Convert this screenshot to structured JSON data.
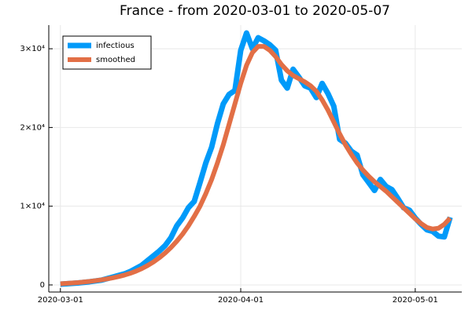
{
  "chart_data": {
    "type": "line",
    "title": "France - from 2020-03-01 to 2020-05-07",
    "x": [
      "2020-03-01",
      "2020-03-02",
      "2020-03-03",
      "2020-03-04",
      "2020-03-05",
      "2020-03-06",
      "2020-03-07",
      "2020-03-08",
      "2020-03-09",
      "2020-03-10",
      "2020-03-11",
      "2020-03-12",
      "2020-03-13",
      "2020-03-14",
      "2020-03-15",
      "2020-03-16",
      "2020-03-17",
      "2020-03-18",
      "2020-03-19",
      "2020-03-20",
      "2020-03-21",
      "2020-03-22",
      "2020-03-23",
      "2020-03-24",
      "2020-03-25",
      "2020-03-26",
      "2020-03-27",
      "2020-03-28",
      "2020-03-29",
      "2020-03-30",
      "2020-03-31",
      "2020-04-01",
      "2020-04-02",
      "2020-04-03",
      "2020-04-04",
      "2020-04-05",
      "2020-04-06",
      "2020-04-07",
      "2020-04-08",
      "2020-04-09",
      "2020-04-10",
      "2020-04-11",
      "2020-04-12",
      "2020-04-13",
      "2020-04-14",
      "2020-04-15",
      "2020-04-16",
      "2020-04-17",
      "2020-04-18",
      "2020-04-19",
      "2020-04-20",
      "2020-04-21",
      "2020-04-22",
      "2020-04-23",
      "2020-04-24",
      "2020-04-25",
      "2020-04-26",
      "2020-04-27",
      "2020-04-28",
      "2020-04-29",
      "2020-04-30",
      "2020-05-01",
      "2020-05-02",
      "2020-05-03",
      "2020-05-04",
      "2020-05-05",
      "2020-05-06",
      "2020-05-07"
    ],
    "series": [
      {
        "name": "infectious",
        "color": "#009af9",
        "width": 7,
        "values": [
          100,
          150,
          200,
          250,
          320,
          400,
          500,
          600,
          800,
          1000,
          1200,
          1400,
          1700,
          2100,
          2500,
          3100,
          3700,
          4300,
          5000,
          6000,
          7500,
          8500,
          9800,
          10600,
          13000,
          15500,
          17500,
          20500,
          23000,
          24200,
          24700,
          29800,
          32000,
          30000,
          31400,
          31000,
          30500,
          29800,
          26000,
          25000,
          27400,
          26400,
          25300,
          25000,
          23800,
          25600,
          24300,
          22700,
          18500,
          18000,
          17000,
          16500,
          14000,
          13000,
          12000,
          13400,
          12500,
          12100,
          11000,
          9800,
          9500,
          8500,
          7700,
          7000,
          6800,
          6200,
          6100,
          8600
        ]
      },
      {
        "name": "smoothed",
        "color": "#e26f46",
        "width": 6,
        "values": [
          150,
          200,
          250,
          300,
          370,
          450,
          540,
          640,
          760,
          900,
          1060,
          1250,
          1480,
          1750,
          2080,
          2470,
          2920,
          3450,
          4050,
          4750,
          5550,
          6450,
          7500,
          8700,
          10000,
          11600,
          13400,
          15500,
          17800,
          20400,
          23000,
          25600,
          27900,
          29500,
          30300,
          30300,
          29800,
          29000,
          28000,
          27200,
          26600,
          26200,
          25800,
          25300,
          24600,
          23500,
          22200,
          20700,
          19200,
          17800,
          16600,
          15500,
          14600,
          13800,
          13100,
          12500,
          11900,
          11200,
          10500,
          9800,
          9100,
          8400,
          7800,
          7300,
          7100,
          7200,
          7700,
          8500
        ]
      }
    ],
    "xlim": [
      "2020-02-28",
      "2020-05-09"
    ],
    "xticks": [
      "2020-03-01",
      "2020-04-01",
      "2020-05-01"
    ],
    "ylim": [
      -900,
      33000
    ],
    "yticks": [
      0,
      {
        "value": 10000,
        "label": "1×10⁴"
      },
      {
        "value": 20000,
        "label": "2×10⁴"
      },
      {
        "value": 30000,
        "label": "3×10⁴"
      }
    ],
    "grid": true,
    "legend": "top-left"
  }
}
